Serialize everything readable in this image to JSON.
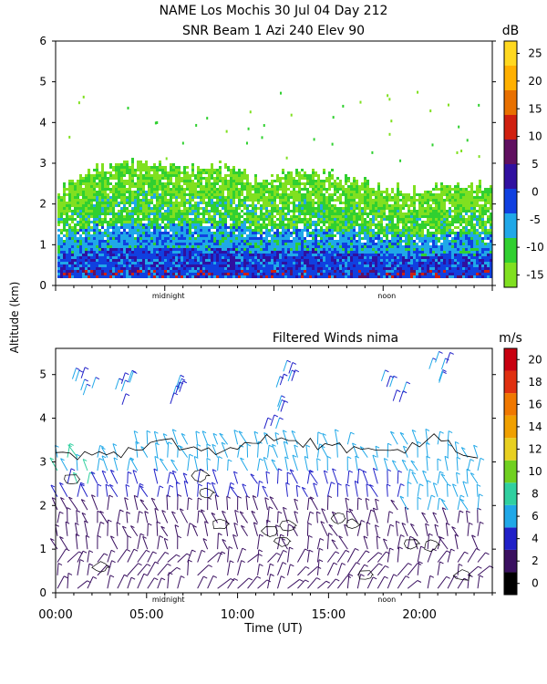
{
  "figure": {
    "title_line1": "NAME Los Mochis    30 Jul 04 Day 212",
    "title_line2": "SNR Beam 1 Azi 240 Elev 90",
    "shared_ylabel": "Altitude (km)",
    "xlabel": "Time (UT)"
  },
  "chart_data": [
    {
      "type": "heatmap",
      "title": "SNR Beam 1 Azi 240 Elev 90",
      "ylabel": "Altitude (km)",
      "ylim": [
        0,
        6
      ],
      "yticks": [
        0,
        1,
        2,
        3,
        4,
        5,
        6
      ],
      "xlim": [
        0,
        24
      ],
      "x_markers": [
        {
          "x": 6.2,
          "label": "midnight"
        },
        {
          "x": 18.2,
          "label": "noon"
        }
      ],
      "colorbar": {
        "unit": "dB",
        "ticks": [
          -15,
          -10,
          -5,
          0,
          5,
          10,
          15,
          20,
          25
        ],
        "colors": [
          "#80e020",
          "#30d030",
          "#20a8e8",
          "#1040e0",
          "#3010a0",
          "#601060",
          "#d02010",
          "#e87000",
          "#ffb000",
          "#ffd820"
        ]
      },
      "echo_top_km": [
        {
          "t": 0,
          "top": 2.3
        },
        {
          "t": 2,
          "top": 2.8
        },
        {
          "t": 3,
          "top": 2.9
        },
        {
          "t": 5,
          "top": 3.0
        },
        {
          "t": 7,
          "top": 2.8
        },
        {
          "t": 9,
          "top": 2.9
        },
        {
          "t": 11,
          "top": 2.6
        },
        {
          "t": 13,
          "top": 2.8
        },
        {
          "t": 15,
          "top": 2.7
        },
        {
          "t": 17,
          "top": 2.5
        },
        {
          "t": 19,
          "top": 2.3
        },
        {
          "t": 21,
          "top": 2.4
        },
        {
          "t": 23,
          "top": 2.4
        }
      ]
    },
    {
      "type": "barb",
      "title": "Filtered Winds nima",
      "ylabel": "Altitude (km)",
      "ylim": [
        0,
        5.6
      ],
      "yticks": [
        0,
        1,
        2,
        3,
        4,
        5
      ],
      "xlim": [
        0,
        24
      ],
      "xticks": [
        "00:00",
        "05:00",
        "10:00",
        "15:00",
        "20:00"
      ],
      "x_markers": [
        {
          "x": 6.2,
          "label": "midnight"
        },
        {
          "x": 18.2,
          "label": "noon"
        }
      ],
      "colorbar": {
        "unit": "m/s",
        "ticks": [
          0,
          2,
          4,
          6,
          8,
          10,
          12,
          14,
          16,
          18,
          20
        ],
        "colors": [
          "#000000",
          "#3a1060",
          "#2020c8",
          "#20a8e8",
          "#30d0a0",
          "#70d020",
          "#e8d020",
          "#f0a000",
          "#f07800",
          "#e03010",
          "#c80010"
        ]
      },
      "wind_cloud_top_km": [
        {
          "t": 0,
          "top": 3.3
        },
        {
          "t": 3,
          "top": 3.3
        },
        {
          "t": 6,
          "top": 3.6
        },
        {
          "t": 9,
          "top": 3.4
        },
        {
          "t": 12,
          "top": 3.7
        },
        {
          "t": 15,
          "top": 3.5
        },
        {
          "t": 18,
          "top": 3.3
        },
        {
          "t": 21,
          "top": 3.7
        },
        {
          "t": 23.3,
          "top": 3.1
        }
      ]
    }
  ]
}
